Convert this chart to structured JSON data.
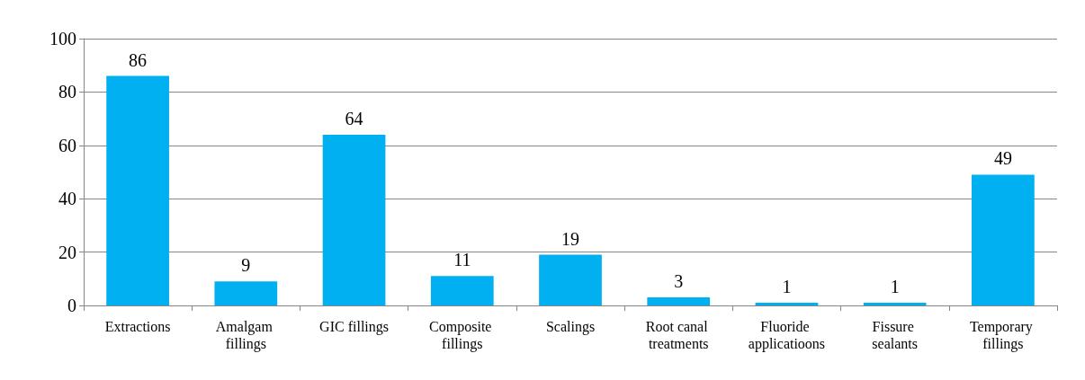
{
  "chart_data": {
    "type": "bar",
    "categories": [
      "Extractions",
      "Amalgam fillings",
      "GIC fillings",
      "Composite fillings",
      "Scalings",
      "Root canal treatments",
      "Fluoride applicatioons",
      "Fissure sealants",
      "Temporary fillings"
    ],
    "values": [
      86,
      9,
      64,
      11,
      19,
      3,
      1,
      1,
      49
    ],
    "color": "#00b0f0",
    "ylim": [
      0,
      100
    ],
    "yticks": [
      0,
      20,
      40,
      60,
      80,
      100
    ],
    "grid": "y",
    "data_labels": true
  }
}
